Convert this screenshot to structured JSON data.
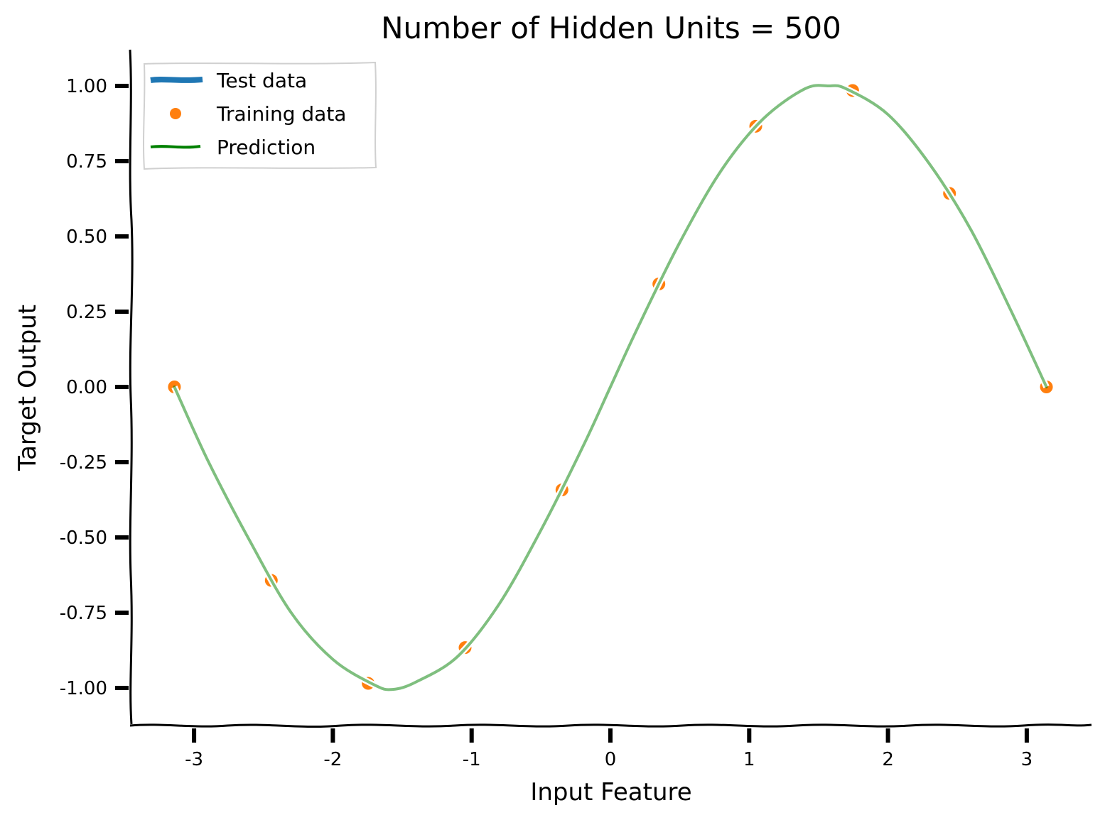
{
  "chart_data": {
    "type": "line",
    "title": "Number of Hidden Units = 500",
    "xlabel": "Input Feature",
    "ylabel": "Target Output",
    "xlim": [
      -3.5,
      3.5
    ],
    "ylim": [
      -1.12,
      1.12
    ],
    "xticks": [
      -3,
      -2,
      -1,
      0,
      1,
      2,
      3
    ],
    "xtick_labels": [
      "-3",
      "-2",
      "-1",
      "0",
      "1",
      "2",
      "3"
    ],
    "yticks": [
      1.0,
      0.75,
      0.5,
      0.25,
      0.0,
      -0.25,
      -0.5,
      -0.75,
      -1.0
    ],
    "ytick_labels": [
      "1.00",
      "0.75",
      "0.50",
      "0.25",
      "0.00",
      "-0.25",
      "-0.50",
      "-0.75",
      "-1.00"
    ],
    "grid": false,
    "legend_position": "top-left",
    "series": [
      {
        "name": "Test data",
        "kind": "line",
        "color": "#1f77b4",
        "x": [
          -3.1416,
          -2.9,
          -2.6,
          -2.3,
          -2.0,
          -1.7,
          -1.5708,
          -1.4,
          -1.1,
          -0.8,
          -0.5,
          -0.2,
          0.0,
          0.2,
          0.5,
          0.8,
          1.1,
          1.4,
          1.5708,
          1.7,
          2.0,
          2.3,
          2.6,
          2.9,
          3.1416
        ],
        "y": [
          0.0,
          -0.239,
          -0.516,
          -0.746,
          -0.909,
          -0.992,
          -1.0,
          -0.985,
          -0.891,
          -0.717,
          -0.479,
          -0.199,
          0.0,
          0.199,
          0.479,
          0.717,
          0.891,
          0.985,
          1.0,
          0.992,
          0.909,
          0.746,
          0.516,
          0.239,
          0.0
        ]
      },
      {
        "name": "Training data",
        "kind": "scatter",
        "color": "#ff7f0e",
        "x": [
          -3.1416,
          -2.4435,
          -1.7453,
          -1.0472,
          -0.3491,
          0.3491,
          1.0472,
          1.7453,
          2.4435,
          3.1416
        ],
        "y": [
          0.0,
          -0.6428,
          -0.9848,
          -0.866,
          -0.342,
          0.342,
          0.866,
          0.9848,
          0.6428,
          0.0
        ]
      },
      {
        "name": "Prediction",
        "kind": "line",
        "color": "#008000",
        "x": [
          -3.1416,
          -2.9,
          -2.6,
          -2.3,
          -2.0,
          -1.7,
          -1.5708,
          -1.4,
          -1.1,
          -0.8,
          -0.5,
          -0.2,
          0.0,
          0.2,
          0.5,
          0.8,
          1.1,
          1.4,
          1.5708,
          1.7,
          2.0,
          2.3,
          2.6,
          2.9,
          3.1416
        ],
        "y": [
          0.0,
          -0.245,
          -0.51,
          -0.75,
          -0.905,
          -0.99,
          -1.005,
          -0.98,
          -0.895,
          -0.72,
          -0.475,
          -0.2,
          0.0,
          0.2,
          0.48,
          0.72,
          0.89,
          0.99,
          1.0,
          0.99,
          0.905,
          0.74,
          0.52,
          0.24,
          0.0
        ]
      }
    ]
  }
}
